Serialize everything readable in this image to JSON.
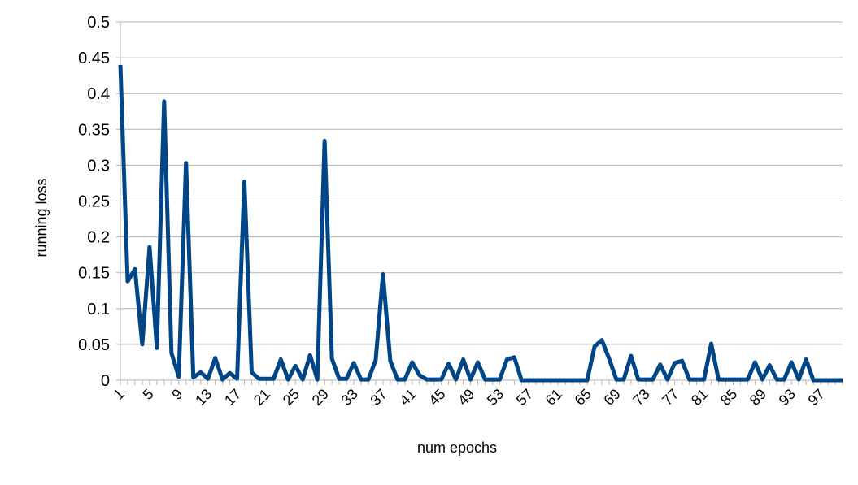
{
  "chart_data": {
    "type": "line",
    "title": "",
    "xlabel": "num epochs",
    "ylabel": "running loss",
    "ylim": [
      0,
      0.5
    ],
    "yticks": [
      "0",
      "0.05",
      "0.1",
      "0.15",
      "0.2",
      "0.25",
      "0.3",
      "0.35",
      "0.4",
      "0.45",
      "0.5"
    ],
    "ytick_values": [
      0,
      0.05,
      0.1,
      0.15,
      0.2,
      0.25,
      0.3,
      0.35,
      0.4,
      0.45,
      0.5
    ],
    "xticks": [
      "1",
      "5",
      "9",
      "13",
      "17",
      "21",
      "25",
      "29",
      "33",
      "37",
      "41",
      "45",
      "49",
      "53",
      "57",
      "61",
      "65",
      "69",
      "73",
      "77",
      "81",
      "85",
      "89",
      "93",
      "97"
    ],
    "grid": true,
    "legend": "none",
    "color": "#004586",
    "series": [
      {
        "name": "running loss",
        "x": [
          1,
          2,
          3,
          4,
          5,
          6,
          7,
          8,
          9,
          10,
          11,
          12,
          13,
          14,
          15,
          16,
          17,
          18,
          19,
          20,
          21,
          22,
          23,
          24,
          25,
          26,
          27,
          28,
          29,
          30,
          31,
          32,
          33,
          34,
          35,
          36,
          37,
          38,
          39,
          40,
          41,
          42,
          43,
          44,
          45,
          46,
          47,
          48,
          49,
          50,
          51,
          52,
          53,
          54,
          55,
          56,
          57,
          58,
          59,
          60,
          61,
          62,
          63,
          64,
          65,
          66,
          67,
          68,
          69,
          70,
          71,
          72,
          73,
          74,
          75,
          76,
          77,
          78,
          79,
          80,
          81,
          82,
          83,
          84,
          85,
          86,
          87,
          88,
          89,
          90,
          91,
          92,
          93,
          94,
          95,
          96,
          97,
          98,
          99,
          100
        ],
        "values": [
          0.44,
          0.138,
          0.155,
          0.05,
          0.186,
          0.045,
          0.389,
          0.038,
          0.005,
          0.303,
          0.004,
          0.011,
          0.002,
          0.031,
          0.001,
          0.01,
          0.002,
          0.277,
          0.011,
          0.002,
          0.002,
          0.002,
          0.029,
          0.001,
          0.02,
          0.001,
          0.035,
          0.001,
          0.334,
          0.03,
          0.002,
          0.002,
          0.024,
          0.001,
          0.001,
          0.028,
          0.148,
          0.027,
          0.001,
          0.001,
          0.025,
          0.007,
          0.001,
          0.001,
          0.001,
          0.023,
          0.001,
          0.029,
          0.001,
          0.025,
          0.001,
          0.001,
          0.001,
          0.029,
          0.032,
          0.0,
          0.0,
          0.0,
          0.0,
          0.0,
          0.0,
          0.0,
          0.0,
          0.0,
          0.0,
          0.047,
          0.056,
          0.03,
          0.001,
          0.001,
          0.034,
          0.001,
          0.001,
          0.001,
          0.022,
          0.001,
          0.024,
          0.027,
          0.001,
          0.001,
          0.001,
          0.051,
          0.001,
          0.001,
          0.001,
          0.001,
          0.001,
          0.025,
          0.001,
          0.021,
          0.001,
          0.001,
          0.025,
          0.001,
          0.029,
          0.0,
          0.0,
          0.0,
          0.0,
          0.0
        ]
      }
    ]
  }
}
